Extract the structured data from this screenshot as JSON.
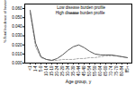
{
  "chart_data": {
    "type": "line",
    "xlabel": "Age group, y",
    "ylabel": "% Total Incidence of Invasive Disease",
    "categories": [
      "<1",
      "1-4",
      "5-9",
      "10-14",
      "15-19",
      "20-24",
      "25-29",
      "30-34",
      "35-39",
      "40-44",
      "45-49",
      "50-54",
      "55-59",
      "60-64",
      "65-69",
      "70-74",
      "75-79",
      "80-84",
      "85+"
    ],
    "series": [
      {
        "name": "Low disease burden profile",
        "color": "#aaaaaa",
        "line_style": "dashed",
        "values": [
          0.055,
          0.018,
          0.006,
          0.004,
          0.003,
          0.003,
          0.004,
          0.004,
          0.004,
          0.005,
          0.005,
          0.006,
          0.006,
          0.007,
          0.008,
          0.008,
          0.008,
          0.007,
          0.006
        ]
      },
      {
        "name": "High disease burden profile",
        "color": "#555555",
        "line_style": "solid",
        "values": [
          0.058,
          0.022,
          0.007,
          0.004,
          0.003,
          0.005,
          0.009,
          0.014,
          0.018,
          0.02,
          0.017,
          0.013,
          0.01,
          0.009,
          0.009,
          0.009,
          0.008,
          0.007,
          0.006
        ]
      }
    ],
    "ylim": [
      0,
      0.065
    ],
    "yticks": [
      {
        "value": 0.0,
        "label": "0.000"
      },
      {
        "value": 0.01,
        "label": "0.010"
      },
      {
        "value": 0.02,
        "label": "0.020"
      },
      {
        "value": 0.03,
        "label": "0.030"
      },
      {
        "value": 0.04,
        "label": "0.040"
      },
      {
        "value": 0.05,
        "label": "0.050"
      },
      {
        "value": 0.06,
        "label": "0.060"
      }
    ],
    "legend": "upper right",
    "grid": false
  }
}
